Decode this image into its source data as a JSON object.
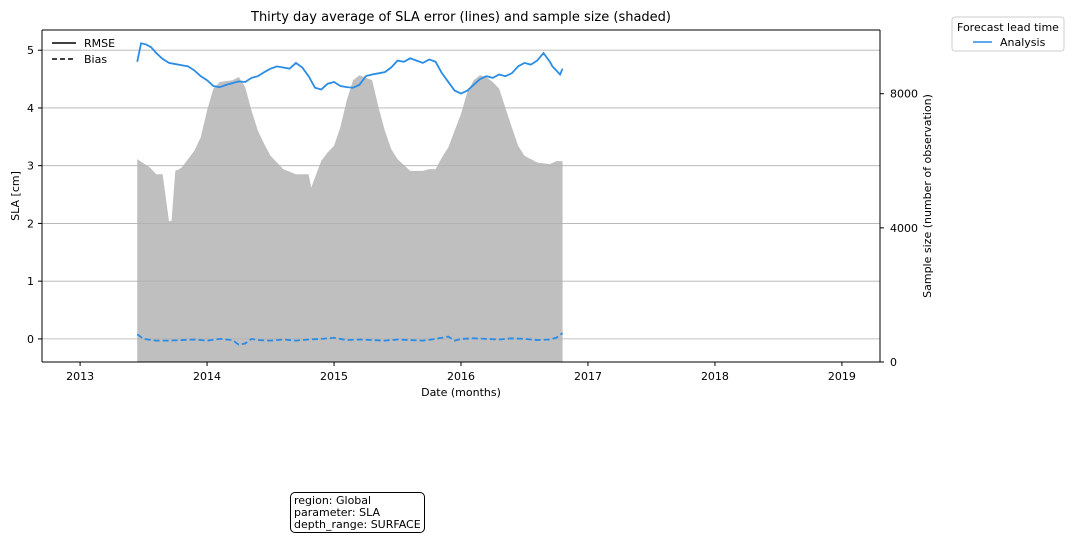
{
  "chart_data": {
    "type": "line",
    "title": "Thirty day average of SLA error (lines) and sample size (shaded)",
    "xlabel": "Date (months)",
    "ylabel": "SLA [cm]",
    "y2label": "Sample size (number of observation)",
    "xlim": [
      2012.7,
      2019.3
    ],
    "ylim": [
      -0.4,
      5.35
    ],
    "y2lim": [
      0,
      9900
    ],
    "x_ticks": [
      2013,
      2014,
      2015,
      2016,
      2017,
      2018,
      2019
    ],
    "y_ticks": [
      0,
      1,
      2,
      3,
      4,
      5
    ],
    "y2_ticks": [
      0,
      4000,
      8000
    ],
    "grid": "horizontal",
    "style_legend": {
      "placement": "top-left",
      "entries": [
        {
          "label": "RMSE",
          "style": "solid"
        },
        {
          "label": "Bias",
          "style": "dashed"
        }
      ]
    },
    "series_legend": {
      "title": "Forecast lead time",
      "placement": "outside-top-right",
      "entries": [
        {
          "label": "Analysis",
          "color": "#2b8ce6"
        }
      ]
    },
    "colors": {
      "line": "#2b8ce6",
      "shade": "#bfbfbf"
    },
    "rmse": {
      "x": [
        2013.45,
        2013.48,
        2013.52,
        2013.56,
        2013.6,
        2013.65,
        2013.7,
        2013.75,
        2013.8,
        2013.85,
        2013.9,
        2013.95,
        2014.0,
        2014.05,
        2014.1,
        2014.15,
        2014.2,
        2014.25,
        2014.3,
        2014.35,
        2014.4,
        2014.45,
        2014.5,
        2014.55,
        2014.6,
        2014.65,
        2014.7,
        2014.75,
        2014.8,
        2014.85,
        2014.9,
        2014.95,
        2015.0,
        2015.05,
        2015.1,
        2015.15,
        2015.2,
        2015.25,
        2015.3,
        2015.35,
        2015.4,
        2015.45,
        2015.5,
        2015.55,
        2015.6,
        2015.65,
        2015.7,
        2015.75,
        2015.8,
        2015.85,
        2015.9,
        2015.95,
        2016.0,
        2016.05,
        2016.1,
        2016.15,
        2016.2,
        2016.25,
        2016.3,
        2016.35,
        2016.4,
        2016.45,
        2016.5,
        2016.55,
        2016.6,
        2016.65,
        2016.7,
        2016.72,
        2016.75,
        2016.78,
        2016.8
      ],
      "y": [
        4.8,
        5.12,
        5.1,
        5.05,
        4.95,
        4.85,
        4.78,
        4.76,
        4.74,
        4.72,
        4.65,
        4.55,
        4.48,
        4.38,
        4.36,
        4.4,
        4.43,
        4.46,
        4.45,
        4.52,
        4.55,
        4.62,
        4.68,
        4.72,
        4.7,
        4.68,
        4.78,
        4.7,
        4.55,
        4.35,
        4.32,
        4.42,
        4.45,
        4.38,
        4.36,
        4.35,
        4.4,
        4.55,
        4.58,
        4.6,
        4.62,
        4.7,
        4.82,
        4.8,
        4.86,
        4.82,
        4.78,
        4.84,
        4.8,
        4.6,
        4.45,
        4.3,
        4.25,
        4.3,
        4.4,
        4.5,
        4.55,
        4.52,
        4.58,
        4.55,
        4.6,
        4.72,
        4.78,
        4.75,
        4.82,
        4.95,
        4.8,
        4.72,
        4.65,
        4.58,
        4.68
      ]
    },
    "bias": {
      "x": [
        2013.45,
        2013.5,
        2013.6,
        2013.7,
        2013.8,
        2013.9,
        2014.0,
        2014.1,
        2014.2,
        2014.25,
        2014.3,
        2014.35,
        2014.4,
        2014.5,
        2014.6,
        2014.7,
        2014.8,
        2014.9,
        2015.0,
        2015.1,
        2015.2,
        2015.3,
        2015.4,
        2015.5,
        2015.6,
        2015.7,
        2015.8,
        2015.9,
        2015.95,
        2016.0,
        2016.1,
        2016.2,
        2016.3,
        2016.4,
        2016.5,
        2016.6,
        2016.7,
        2016.75,
        2016.8
      ],
      "y": [
        0.08,
        0.0,
        -0.03,
        -0.03,
        -0.02,
        -0.01,
        -0.03,
        0.0,
        -0.02,
        -0.1,
        -0.08,
        0.0,
        -0.02,
        -0.03,
        -0.01,
        -0.03,
        -0.01,
        0.0,
        0.02,
        -0.02,
        -0.01,
        -0.02,
        -0.03,
        -0.01,
        -0.02,
        -0.03,
        0.0,
        0.04,
        -0.03,
        0.0,
        0.01,
        0.0,
        -0.01,
        0.01,
        0.0,
        -0.02,
        -0.01,
        0.02,
        0.1
      ]
    },
    "sample_size": {
      "x": [
        2013.45,
        2013.55,
        2013.6,
        2013.65,
        2013.7,
        2013.72,
        2013.75,
        2013.78,
        2013.8,
        2013.9,
        2013.95,
        2014.0,
        2014.05,
        2014.1,
        2014.2,
        2014.25,
        2014.3,
        2014.35,
        2014.4,
        2014.45,
        2014.5,
        2014.6,
        2014.7,
        2014.75,
        2014.8,
        2014.82,
        2014.85,
        2014.9,
        2014.95,
        2015.0,
        2015.05,
        2015.1,
        2015.15,
        2015.2,
        2015.3,
        2015.35,
        2015.4,
        2015.45,
        2015.5,
        2015.6,
        2015.7,
        2015.75,
        2015.8,
        2015.85,
        2015.9,
        2016.0,
        2016.05,
        2016.1,
        2016.15,
        2016.2,
        2016.25,
        2016.3,
        2016.4,
        2016.45,
        2016.5,
        2016.6,
        2016.7,
        2016.75,
        2016.8
      ],
      "y": [
        6050,
        5800,
        5600,
        5600,
        4200,
        4200,
        5700,
        5750,
        5800,
        6300,
        6700,
        7500,
        8150,
        8350,
        8400,
        8500,
        8200,
        7500,
        6900,
        6500,
        6150,
        5750,
        5600,
        5600,
        5600,
        5200,
        5500,
        6000,
        6250,
        6450,
        7000,
        7800,
        8400,
        8550,
        8400,
        7600,
        6900,
        6350,
        6050,
        5700,
        5700,
        5750,
        5750,
        6100,
        6400,
        7400,
        8050,
        8400,
        8550,
        8500,
        8350,
        8150,
        7000,
        6450,
        6150,
        5950,
        5900,
        5990,
        5990
      ]
    }
  },
  "info_box": {
    "lines": [
      "region: Global",
      "parameter: SLA",
      "depth_range: SURFACE"
    ]
  }
}
